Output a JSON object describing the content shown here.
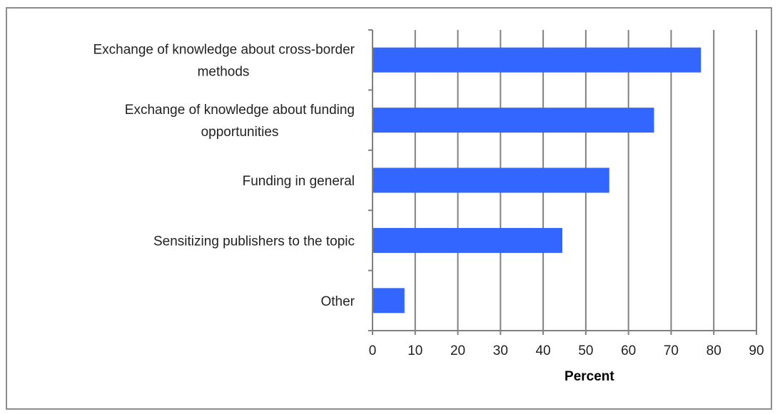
{
  "chart_data": {
    "type": "bar",
    "orientation": "horizontal",
    "categories": [
      [
        "Exchange of knowledge about cross-border",
        "methods"
      ],
      [
        "Exchange of knowledge about funding",
        "opportunities"
      ],
      [
        "Funding in general"
      ],
      [
        "Sensitizing publishers to the topic"
      ],
      [
        "Other"
      ]
    ],
    "values": [
      77,
      66,
      55.5,
      44.5,
      7.5
    ],
    "xlabel": "Percent",
    "xlim": [
      0,
      90
    ],
    "xticks": [
      0,
      10,
      20,
      30,
      40,
      50,
      60,
      70,
      80,
      90
    ],
    "grid": "vertical",
    "bar_color": "#3366ff",
    "grid_color": "#808080"
  }
}
